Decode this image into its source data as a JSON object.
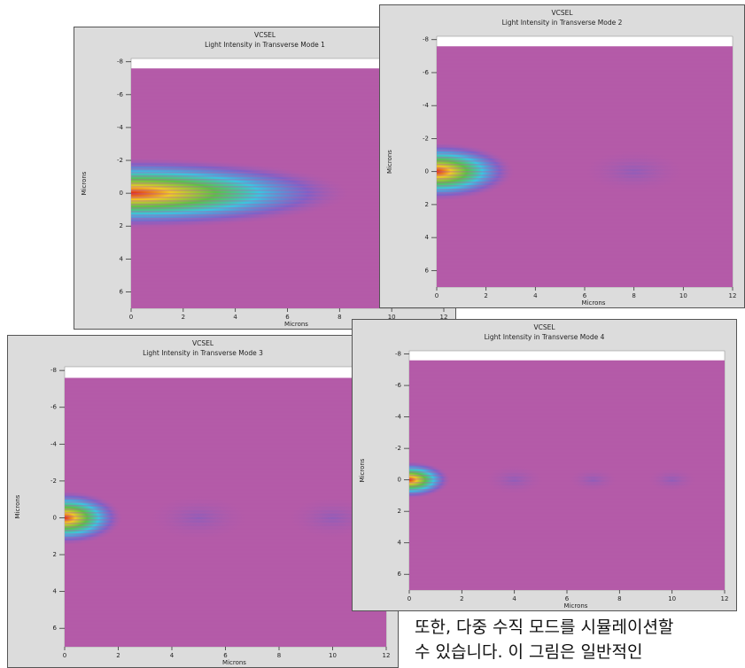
{
  "panels": [
    {
      "title": "VCSEL",
      "subtitle": "Light Intensity in Transverse Mode 1",
      "y_label": "Microns",
      "x_label": "Microns",
      "yticks": [
        -8,
        -6,
        -4,
        -2,
        0,
        2,
        4,
        6
      ],
      "xticks": [
        0,
        2,
        4,
        6,
        8,
        10,
        12
      ]
    },
    {
      "title": "VCSEL",
      "subtitle": "Light Intensity in Transverse Mode 2",
      "y_label": "Microns",
      "x_label": "Microns",
      "yticks": [
        -8,
        -6,
        -4,
        -2,
        0,
        2,
        4,
        6
      ],
      "xticks": [
        0,
        2,
        4,
        6,
        8,
        10,
        12
      ]
    },
    {
      "title": "VCSEL",
      "subtitle": "Light Intensity in Transverse Mode 3",
      "y_label": "Microns",
      "x_label": "Microns",
      "yticks": [
        -8,
        -6,
        -4,
        -2,
        0,
        2,
        4,
        6
      ],
      "xticks": [
        0,
        2,
        4,
        6,
        8,
        10,
        12
      ]
    },
    {
      "title": "VCSEL",
      "subtitle": "Light Intensity in Transverse Mode 4",
      "y_label": "Microns",
      "x_label": "Microns",
      "yticks": [
        -8,
        -6,
        -4,
        -2,
        0,
        2,
        4,
        6
      ],
      "xticks": [
        0,
        2,
        4,
        6,
        8,
        10,
        12
      ]
    }
  ],
  "caption": [
    "또한, 다중 수직 모드를 시뮬레이션할",
    "수 있습니다. 이 그림은 일반적인"
  ]
}
